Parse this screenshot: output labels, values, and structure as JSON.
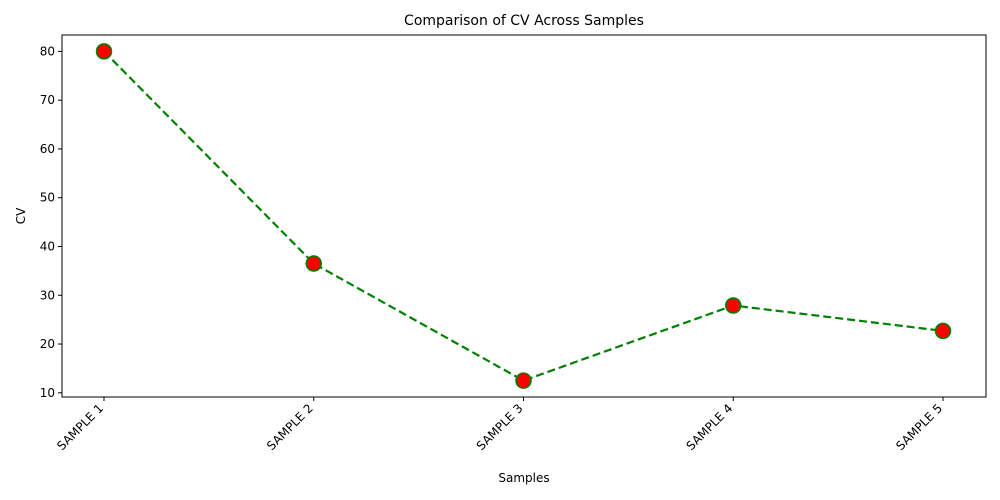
{
  "chart_data": {
    "type": "line",
    "title": "Comparison of CV Across Samples",
    "xlabel": "Samples",
    "ylabel": "CV",
    "categories": [
      "SAMPLE 1",
      "SAMPLE 2",
      "SAMPLE 3",
      "SAMPLE 4",
      "SAMPLE 5"
    ],
    "series": [
      {
        "values": [
          80.0,
          36.5,
          12.5,
          27.9,
          22.7
        ]
      }
    ],
    "ylim": [
      9.14,
      83.36
    ],
    "yticks": [
      10,
      20,
      30,
      40,
      50,
      60,
      70,
      80
    ],
    "grid": false,
    "line_style": "dashed",
    "line_color": "#008000",
    "marker_face_color": "#ff0000",
    "marker_edge_color": "#008000",
    "xtick_rotation": 45
  }
}
